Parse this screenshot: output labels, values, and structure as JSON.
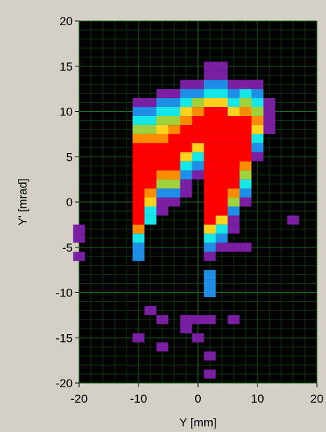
{
  "chart_data": {
    "type": "heatmap",
    "title": "",
    "xlabel": "Y [mm]",
    "ylabel": "Y' [mrad]",
    "xlim": [
      -20,
      20
    ],
    "ylim": [
      -20,
      20
    ],
    "xticks": [
      -20,
      -10,
      0,
      10,
      20
    ],
    "yticks": [
      -20,
      -15,
      -10,
      -5,
      0,
      5,
      10,
      15,
      20
    ],
    "grid": true,
    "bin_width": 2,
    "bin_height": 1,
    "colors": {
      "background": "#000000",
      "panel": "#d4d0c8",
      "grid_major": "#1f6b1f",
      "grid_minor": "#0b3a0b",
      "axis_text": "#000000",
      "scale": [
        "#7a1fa2",
        "#1e8ee6",
        "#16e6e6",
        "#9fd23a",
        "#ffd21e",
        "#ff8c00",
        "#ff0000"
      ]
    },
    "level_names": [
      "purple",
      "blue",
      "cyan",
      "green",
      "yellow",
      "orange",
      "red"
    ],
    "columns": [
      {
        "y": -20,
        "segments": [
          [
            -3,
            -4,
            0
          ],
          [
            -6,
            -6,
            0
          ]
        ]
      },
      {
        "y": -10,
        "segments": [
          [
            -6,
            -5,
            1
          ],
          [
            -4,
            -4,
            2
          ],
          [
            -3,
            -3,
            5
          ],
          [
            -2,
            6,
            6
          ],
          [
            7,
            7,
            5
          ],
          [
            8,
            8,
            3
          ],
          [
            9,
            9,
            2
          ],
          [
            10,
            10,
            1
          ],
          [
            11,
            11,
            0
          ],
          [
            -15,
            -15,
            0
          ]
        ]
      },
      {
        "y": -8,
        "segments": [
          [
            -2,
            -1,
            2
          ],
          [
            0,
            0,
            4
          ],
          [
            1,
            1,
            5
          ],
          [
            2,
            6,
            6
          ],
          [
            7,
            7,
            5
          ],
          [
            8,
            8,
            3
          ],
          [
            9,
            9,
            2
          ],
          [
            10,
            10,
            1
          ],
          [
            11,
            11,
            0
          ],
          [
            -12,
            -12,
            0
          ]
        ]
      },
      {
        "y": -6,
        "segments": [
          [
            -1,
            0,
            0
          ],
          [
            1,
            1,
            1
          ],
          [
            2,
            2,
            3
          ],
          [
            3,
            3,
            5
          ],
          [
            4,
            6,
            6
          ],
          [
            7,
            7,
            5
          ],
          [
            8,
            8,
            4
          ],
          [
            9,
            9,
            3
          ],
          [
            10,
            10,
            2
          ],
          [
            11,
            11,
            1
          ],
          [
            12,
            12,
            0
          ],
          [
            -16,
            -16,
            0
          ],
          [
            -13,
            -13,
            0
          ]
        ]
      },
      {
        "y": -4,
        "segments": [
          [
            0,
            0,
            0
          ],
          [
            1,
            1,
            1
          ],
          [
            2,
            2,
            3
          ],
          [
            3,
            3,
            5
          ],
          [
            4,
            7,
            6
          ],
          [
            8,
            8,
            5
          ],
          [
            9,
            9,
            3
          ],
          [
            10,
            10,
            2
          ],
          [
            11,
            11,
            1
          ],
          [
            12,
            12,
            0
          ]
        ]
      },
      {
        "y": -2,
        "segments": [
          [
            1,
            2,
            0
          ],
          [
            3,
            3,
            1
          ],
          [
            4,
            4,
            2
          ],
          [
            5,
            5,
            4
          ],
          [
            6,
            8,
            6
          ],
          [
            9,
            9,
            5
          ],
          [
            10,
            10,
            4
          ],
          [
            11,
            11,
            2
          ],
          [
            12,
            12,
            1
          ],
          [
            13,
            13,
            0
          ],
          [
            -14,
            -14,
            0
          ],
          [
            -13,
            -13,
            0
          ]
        ]
      },
      {
        "y": 0,
        "segments": [
          [
            3,
            3,
            0
          ],
          [
            4,
            4,
            1
          ],
          [
            5,
            5,
            2
          ],
          [
            6,
            6,
            4
          ],
          [
            7,
            9,
            6
          ],
          [
            10,
            10,
            5
          ],
          [
            11,
            11,
            3
          ],
          [
            12,
            12,
            1
          ],
          [
            13,
            13,
            0
          ],
          [
            -15,
            -15,
            0
          ],
          [
            -13,
            -13,
            0
          ]
        ]
      },
      {
        "y": 2,
        "segments": [
          [
            -6,
            -6,
            0
          ],
          [
            -5,
            -5,
            1
          ],
          [
            -4,
            -4,
            2
          ],
          [
            -3,
            -3,
            4
          ],
          [
            -2,
            10,
            6
          ],
          [
            11,
            11,
            4
          ],
          [
            12,
            12,
            2
          ],
          [
            13,
            13,
            1
          ],
          [
            14,
            14,
            0
          ],
          [
            15,
            15,
            0
          ],
          [
            -8,
            -8,
            1
          ],
          [
            -9,
            -9,
            1
          ],
          [
            -10,
            -10,
            1
          ],
          [
            -13,
            -13,
            0
          ],
          [
            -17,
            -17,
            0
          ],
          [
            -19,
            -19,
            0
          ]
        ]
      },
      {
        "y": 4,
        "segments": [
          [
            -5,
            -5,
            0
          ],
          [
            -4,
            -4,
            1
          ],
          [
            -3,
            -3,
            2
          ],
          [
            -2,
            -2,
            4
          ],
          [
            -1,
            10,
            6
          ],
          [
            11,
            11,
            4
          ],
          [
            12,
            12,
            2
          ],
          [
            13,
            13,
            1
          ],
          [
            14,
            14,
            0
          ],
          [
            15,
            15,
            0
          ]
        ]
      },
      {
        "y": 6,
        "segments": [
          [
            -3,
            -2,
            0
          ],
          [
            -1,
            -1,
            1
          ],
          [
            0,
            0,
            3
          ],
          [
            1,
            1,
            5
          ],
          [
            2,
            9,
            6
          ],
          [
            10,
            10,
            4
          ],
          [
            11,
            11,
            2
          ],
          [
            12,
            12,
            1
          ],
          [
            13,
            13,
            0
          ],
          [
            -13,
            -13,
            0
          ],
          [
            -5,
            -5,
            0
          ]
        ]
      },
      {
        "y": 8,
        "segments": [
          [
            0,
            0,
            0
          ],
          [
            1,
            1,
            1
          ],
          [
            2,
            2,
            2
          ],
          [
            3,
            3,
            3
          ],
          [
            4,
            4,
            5
          ],
          [
            5,
            9,
            6
          ],
          [
            10,
            10,
            5
          ],
          [
            11,
            11,
            3
          ],
          [
            12,
            12,
            2
          ],
          [
            13,
            13,
            0
          ],
          [
            -5,
            -5,
            0
          ]
        ]
      },
      {
        "y": 10,
        "segments": [
          [
            5,
            5,
            0
          ],
          [
            6,
            6,
            1
          ],
          [
            7,
            7,
            2
          ],
          [
            8,
            8,
            4
          ],
          [
            9,
            9,
            5
          ],
          [
            10,
            10,
            3
          ],
          [
            11,
            11,
            2
          ],
          [
            12,
            12,
            1
          ],
          [
            13,
            13,
            0
          ]
        ]
      },
      {
        "y": 12,
        "segments": [
          [
            8,
            11,
            0
          ]
        ]
      },
      {
        "y": 16,
        "segments": [
          [
            -2,
            -2,
            0
          ]
        ]
      }
    ]
  }
}
